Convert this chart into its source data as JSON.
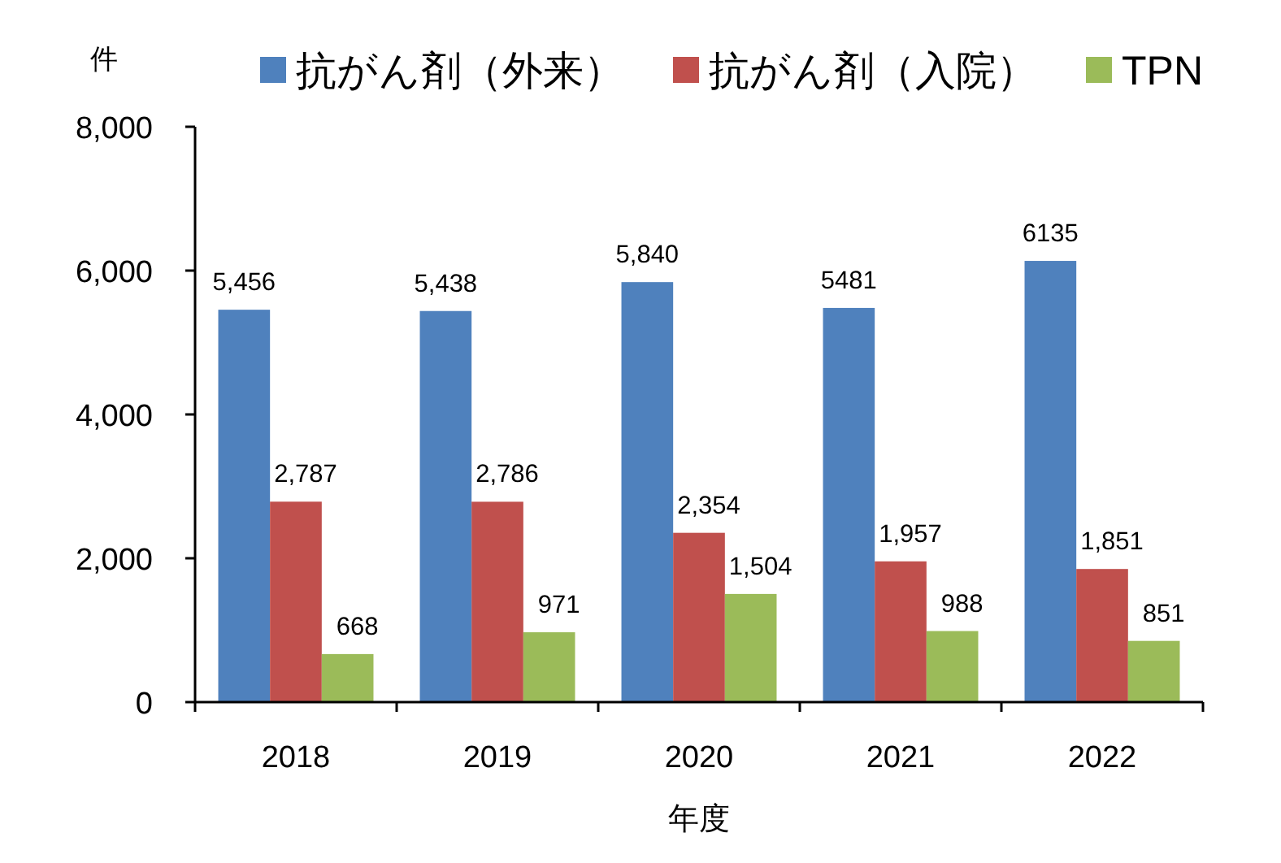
{
  "chart_data": {
    "type": "bar",
    "ylabel": "件",
    "xlabel": "年度",
    "categories": [
      "2018",
      "2019",
      "2020",
      "2021",
      "2022"
    ],
    "series": [
      {
        "name": "抗がん剤（外来）",
        "color": "#4f81bd",
        "values": [
          5456,
          5438,
          5840,
          5481,
          6135
        ],
        "value_labels": [
          "5,456",
          "5,438",
          "5,840",
          "5481",
          "6135"
        ]
      },
      {
        "name": "抗がん剤（入院）",
        "color": "#c0504d",
        "values": [
          2787,
          2786,
          2354,
          1957,
          1851
        ],
        "value_labels": [
          "2,787",
          "2,786",
          "2,354",
          "1,957",
          "1,851"
        ]
      },
      {
        "name": "TPN",
        "color": "#9bbb59",
        "values": [
          668,
          971,
          1504,
          988,
          851
        ],
        "value_labels": [
          "668",
          "971",
          "1,504",
          "988",
          "851"
        ]
      }
    ],
    "ylim": [
      0,
      8000
    ],
    "yticks": [
      0,
      {
        "value": 2000,
        "label": "2,000"
      },
      {
        "value": 4000,
        "label": "4,000"
      },
      {
        "value": 6000,
        "label": "6,000"
      },
      {
        "value": 8000,
        "label": "8,000"
      }
    ],
    "grid": false,
    "legend": "top"
  }
}
